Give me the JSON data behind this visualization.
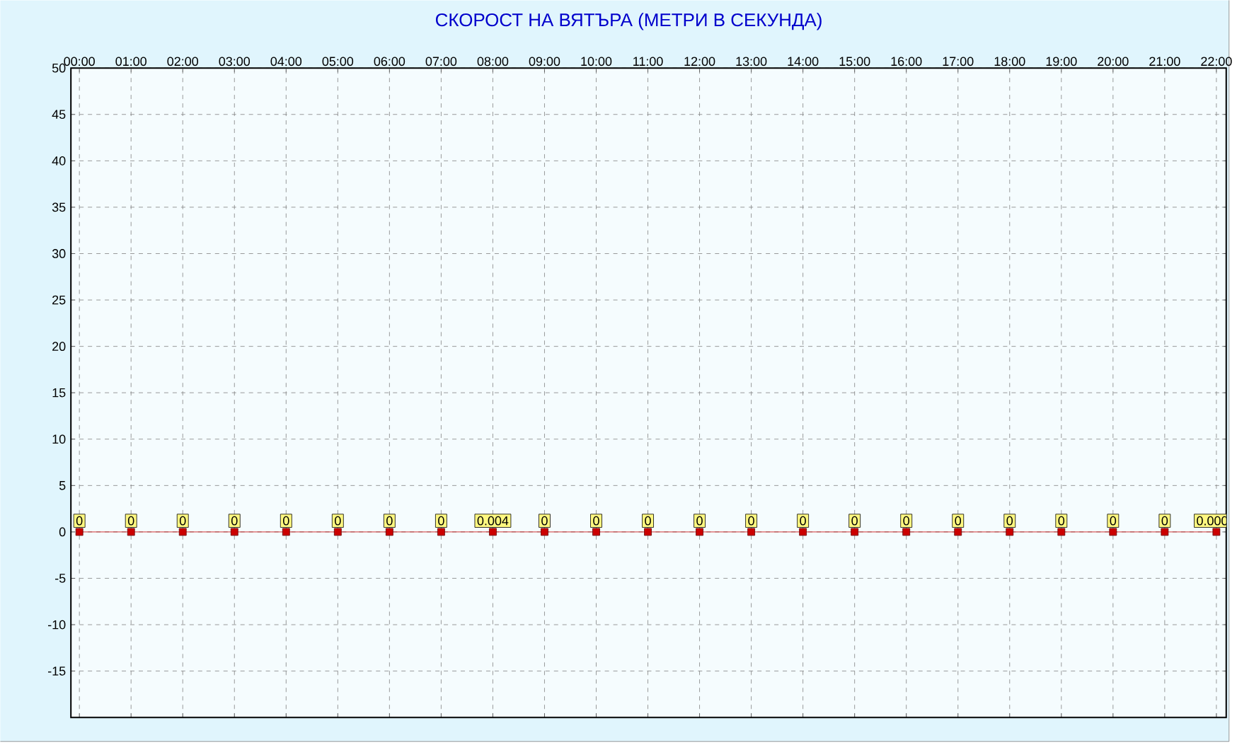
{
  "chart_data": {
    "type": "line",
    "title": "СКОРОСТ НА ВЯТЪРА (МЕТРИ В СЕКУНДА)",
    "categories": [
      "00:00",
      "01:00",
      "02:00",
      "03:00",
      "04:00",
      "05:00",
      "06:00",
      "07:00",
      "08:00",
      "09:00",
      "10:00",
      "11:00",
      "12:00",
      "13:00",
      "14:00",
      "15:00",
      "16:00",
      "17:00",
      "18:00",
      "19:00",
      "20:00",
      "21:00",
      "22:00"
    ],
    "series": [
      {
        "color": "#cc0000",
        "values": [
          0,
          0,
          0,
          0,
          0,
          0,
          0,
          0,
          0.004,
          0,
          0,
          0,
          0,
          0,
          0,
          0,
          0,
          0,
          0,
          0,
          0,
          0,
          0
        ],
        "value_labels": [
          "0",
          "0",
          "0",
          "0",
          "0",
          "0",
          "0",
          "0",
          "0.004",
          "0",
          "0",
          "0",
          "0",
          "0",
          "0",
          "0",
          "0",
          "0",
          "0",
          "0",
          "0",
          "0",
          "0.000"
        ]
      }
    ],
    "ylim": [
      -20,
      50
    ],
    "yticks": [
      -15,
      -10,
      -5,
      0,
      5,
      10,
      15,
      20,
      25,
      30,
      35,
      40,
      45,
      50
    ],
    "grid": true,
    "marker": "square",
    "line_style": "solid"
  }
}
